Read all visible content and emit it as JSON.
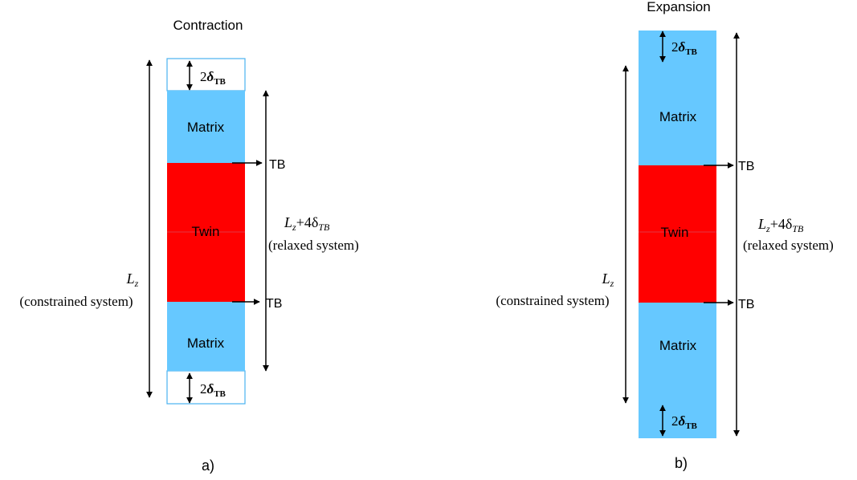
{
  "colors": {
    "matrix": "#66c8ff",
    "twin": "#ff0000",
    "outline": "#4ab2f0",
    "line": "#000000"
  },
  "icons": [
    "double-arrow-icon",
    "arrow-right-icon"
  ],
  "panel_a": {
    "title": "Contraction",
    "caption": "a)",
    "matrix_label": "Matrix",
    "twin_label": "Twin",
    "tb_label": "TB",
    "delta_label": {
      "coef": "2",
      "symbol": "δ",
      "sub": "TB"
    },
    "constrained": {
      "symbol": "L",
      "sub": "z",
      "desc": "(constrained system)"
    },
    "relaxed": {
      "symbol": "L",
      "sub": "z",
      "plus": "+4δ",
      "tb": "TB",
      "desc": "(relaxed system)"
    }
  },
  "panel_b": {
    "title": "Expansion",
    "caption": "b)",
    "matrix_label": "Matrix",
    "twin_label": "Twin",
    "tb_label": "TB",
    "delta_label": {
      "coef": "2",
      "symbol": "δ",
      "sub": "TB"
    },
    "constrained": {
      "symbol": "L",
      "sub": "z",
      "desc": "(constrained system)"
    },
    "relaxed": {
      "symbol": "L",
      "sub": "z",
      "plus": "+4δ",
      "tb": "TB",
      "desc": "(relaxed system)"
    }
  }
}
